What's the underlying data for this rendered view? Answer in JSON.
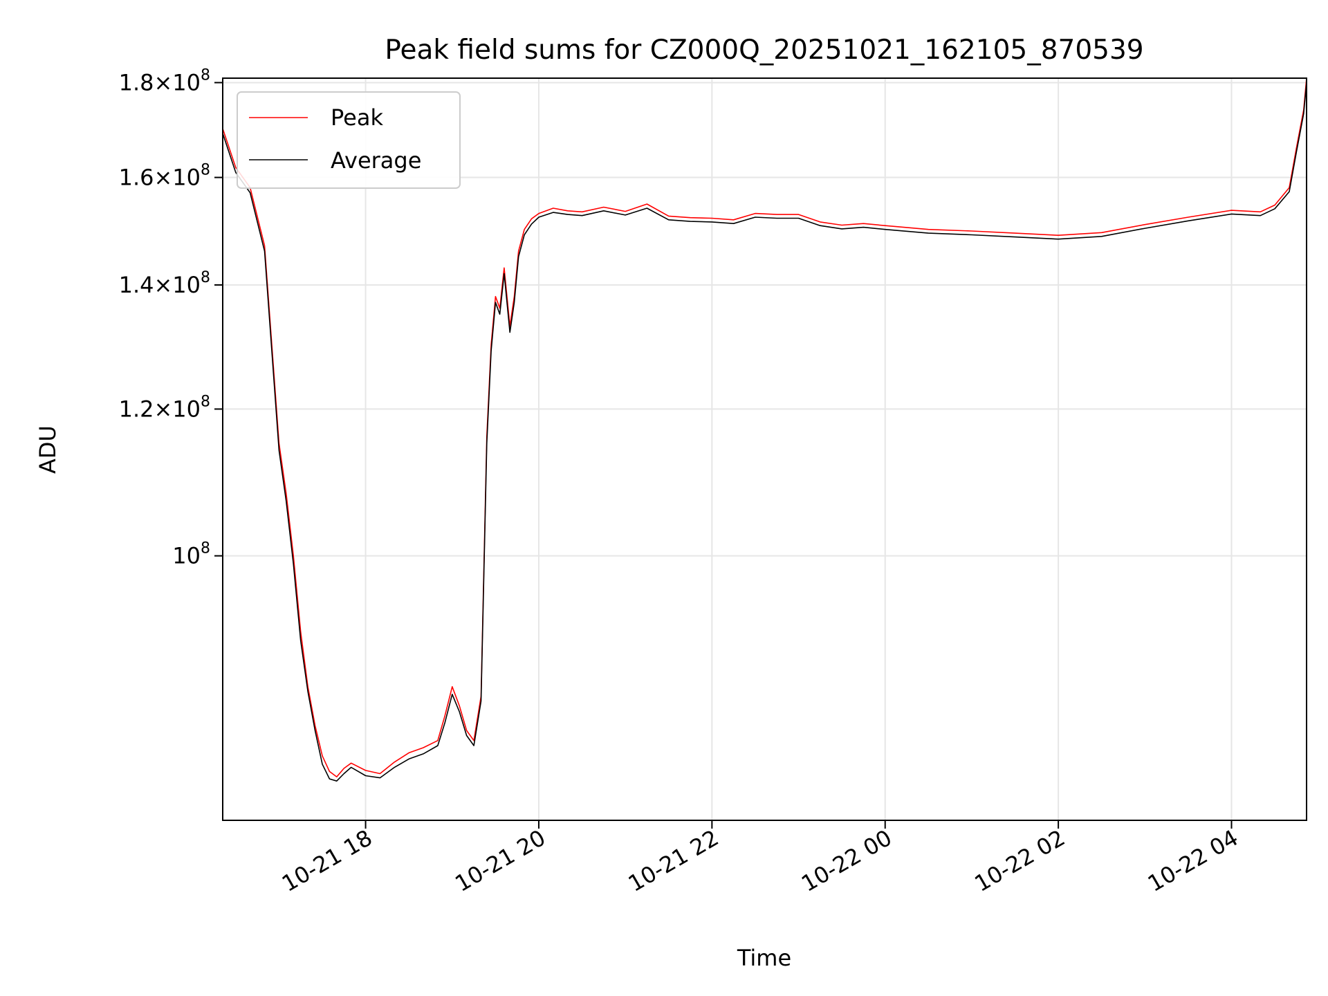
{
  "chart_data": {
    "type": "line",
    "title": "Peak field sums for CZ000Q_20251021_162105_870539",
    "xlabel": "Time",
    "ylabel": "ADU",
    "yscale": "log",
    "xlim": [
      "2025-10-21T16:21",
      "2025-10-22T04:52"
    ],
    "ylim": [
      72000000,
      181000000
    ],
    "grid": true,
    "legend": "top-left",
    "x_ticks": [
      {
        "value": "2025-10-21T18:00",
        "label": "10-21 18"
      },
      {
        "value": "2025-10-21T20:00",
        "label": "10-21 20"
      },
      {
        "value": "2025-10-21T22:00",
        "label": "10-21 22"
      },
      {
        "value": "2025-10-22T00:00",
        "label": "10-22 00"
      },
      {
        "value": "2025-10-22T02:00",
        "label": "10-22 02"
      },
      {
        "value": "2025-10-22T04:00",
        "label": "10-22 04"
      }
    ],
    "y_ticks": [
      {
        "value": 100000000,
        "mantissa": "",
        "exp": "8"
      },
      {
        "value": 120000000,
        "mantissa": "1.2",
        "exp": "8"
      },
      {
        "value": 140000000,
        "mantissa": "1.4",
        "exp": "8"
      },
      {
        "value": 160000000,
        "mantissa": "1.6",
        "exp": "8"
      },
      {
        "value": 180000000,
        "mantissa": "1.8",
        "exp": "8"
      }
    ],
    "times": [
      "2025-10-21T16:21",
      "2025-10-21T16:30",
      "2025-10-21T16:40",
      "2025-10-21T16:50",
      "2025-10-21T17:00",
      "2025-10-21T17:05",
      "2025-10-21T17:10",
      "2025-10-21T17:15",
      "2025-10-21T17:20",
      "2025-10-21T17:25",
      "2025-10-21T17:30",
      "2025-10-21T17:35",
      "2025-10-21T17:40",
      "2025-10-21T17:45",
      "2025-10-21T17:50",
      "2025-10-21T18:00",
      "2025-10-21T18:10",
      "2025-10-21T18:20",
      "2025-10-21T18:30",
      "2025-10-21T18:40",
      "2025-10-21T18:50",
      "2025-10-21T18:55",
      "2025-10-21T19:00",
      "2025-10-21T19:05",
      "2025-10-21T19:10",
      "2025-10-21T19:15",
      "2025-10-21T19:20",
      "2025-10-21T19:24",
      "2025-10-21T19:27",
      "2025-10-21T19:30",
      "2025-10-21T19:33",
      "2025-10-21T19:36",
      "2025-10-21T19:40",
      "2025-10-21T19:43",
      "2025-10-21T19:46",
      "2025-10-21T19:50",
      "2025-10-21T19:55",
      "2025-10-21T20:00",
      "2025-10-21T20:10",
      "2025-10-21T20:20",
      "2025-10-21T20:30",
      "2025-10-21T20:45",
      "2025-10-21T21:00",
      "2025-10-21T21:15",
      "2025-10-21T21:30",
      "2025-10-21T21:45",
      "2025-10-21T22:00",
      "2025-10-21T22:15",
      "2025-10-21T22:30",
      "2025-10-21T22:45",
      "2025-10-21T23:00",
      "2025-10-21T23:15",
      "2025-10-21T23:30",
      "2025-10-21T23:45",
      "2025-10-22T00:00",
      "2025-10-22T00:30",
      "2025-10-22T01:00",
      "2025-10-22T01:30",
      "2025-10-22T02:00",
      "2025-10-22T02:30",
      "2025-10-22T03:00",
      "2025-10-22T03:30",
      "2025-10-22T04:00",
      "2025-10-22T04:20",
      "2025-10-22T04:30",
      "2025-10-22T04:40",
      "2025-10-22T04:45",
      "2025-10-22T04:50",
      "2025-10-22T04:52"
    ],
    "series": [
      {
        "name": "Peak",
        "color": "#ff0000",
        "values": [
          170000000,
          162000000,
          158000000,
          147000000,
          115000000,
          108000000,
          100000000,
          91000000,
          85000000,
          81000000,
          78000000,
          76500000,
          76000000,
          76800000,
          77300000,
          76600000,
          76300000,
          77400000,
          78300000,
          78800000,
          79500000,
          82000000,
          85000000,
          83000000,
          80500000,
          79500000,
          84000000,
          116000000,
          130000000,
          138000000,
          136000000,
          143000000,
          133000000,
          138000000,
          146000000,
          150000000,
          152000000,
          153000000,
          154000000,
          153500000,
          153300000,
          154200000,
          153400000,
          154800000,
          152500000,
          152200000,
          152100000,
          151800000,
          153000000,
          152800000,
          152800000,
          151400000,
          150800000,
          151100000,
          150700000,
          150000000,
          149700000,
          149300000,
          148900000,
          149400000,
          150900000,
          152300000,
          153600000,
          153300000,
          154600000,
          158000000,
          166000000,
          174000000,
          181000000
        ]
      },
      {
        "name": "Average",
        "color": "#000000",
        "values": [
          169000000,
          161000000,
          157000000,
          146000000,
          114000000,
          107000000,
          99000000,
          90000000,
          84500000,
          80500000,
          77200000,
          75800000,
          75600000,
          76300000,
          76900000,
          76100000,
          75900000,
          76900000,
          77700000,
          78200000,
          79000000,
          81300000,
          84200000,
          82400000,
          80000000,
          79000000,
          83500000,
          115000000,
          129000000,
          137000000,
          135000000,
          142000000,
          132000000,
          137000000,
          145000000,
          149000000,
          151000000,
          152300000,
          153200000,
          152800000,
          152600000,
          153500000,
          152700000,
          154000000,
          151800000,
          151500000,
          151400000,
          151100000,
          152300000,
          152100000,
          152100000,
          150700000,
          150100000,
          150400000,
          150000000,
          149300000,
          149000000,
          148600000,
          148200000,
          148700000,
          150200000,
          151600000,
          152900000,
          152600000,
          153900000,
          157200000,
          165200000,
          173200000,
          180000000
        ]
      }
    ]
  }
}
